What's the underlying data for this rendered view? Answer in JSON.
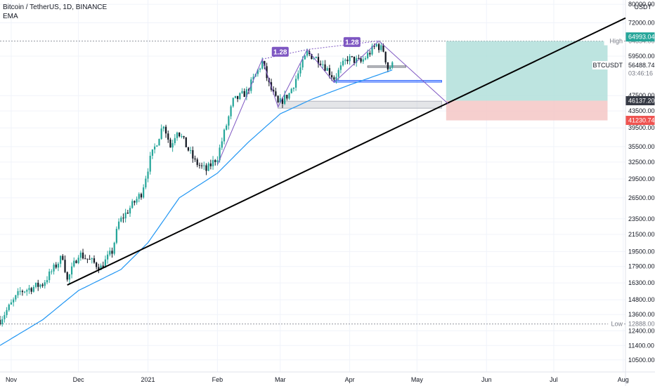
{
  "header": {
    "symbol_line": "Bitcoin / TetherUS, 1D, BINANCE",
    "indicator": "EMA"
  },
  "chart_data": {
    "type": "candlestick",
    "yscale": "log",
    "ylim": [
      9800,
      82000
    ],
    "xlim": [
      "2020-10-27",
      "2021-08-02"
    ],
    "y_ticks": [
      80000,
      72000,
      59500,
      47500,
      43500,
      39500,
      35500,
      32500,
      29500,
      26500,
      23500,
      21500,
      19500,
      17900,
      16300,
      14800,
      13600,
      12400,
      11400,
      10500
    ],
    "y_tick_labels": [
      "80000.00",
      "72000.00",
      "59500.00",
      "47500.00",
      "43500.00",
      "39500.00",
      "35500.00",
      "32500.00",
      "29500.00",
      "26500.00",
      "23500.00",
      "21500.00",
      "19500.00",
      "17900.00",
      "16300.00",
      "14800.00",
      "13600.00",
      "12400.00",
      "11400.00",
      "10500.00"
    ],
    "axis_unit": "USDT",
    "x_ticks": [
      {
        "date": "2020-11-01",
        "label": "Nov"
      },
      {
        "date": "2020-12-01",
        "label": "Dec"
      },
      {
        "date": "2021-01-01",
        "label": "2021"
      },
      {
        "date": "2021-02-01",
        "label": "Feb"
      },
      {
        "date": "2021-03-01",
        "label": "Mar"
      },
      {
        "date": "2021-04-01",
        "label": "Apr"
      },
      {
        "date": "2021-05-01",
        "label": "May"
      },
      {
        "date": "2021-06-01",
        "label": "Jun"
      },
      {
        "date": "2021-07-01",
        "label": "Jul"
      },
      {
        "date": "2021-08-01",
        "label": "Aug"
      }
    ],
    "price_anchors": [
      [
        "2020-10-27",
        13200
      ],
      [
        "2020-11-05",
        15500
      ],
      [
        "2020-11-15",
        16200
      ],
      [
        "2020-11-24",
        19000
      ],
      [
        "2020-11-26",
        16500
      ],
      [
        "2020-12-01",
        19300
      ],
      [
        "2020-12-11",
        17800
      ],
      [
        "2020-12-16",
        19500
      ],
      [
        "2020-12-19",
        23000
      ],
      [
        "2020-12-29",
        27200
      ],
      [
        "2021-01-02",
        33000
      ],
      [
        "2021-01-08",
        40500
      ],
      [
        "2021-01-11",
        35500
      ],
      [
        "2021-01-14",
        39200
      ],
      [
        "2021-01-22",
        32500
      ],
      [
        "2021-01-27",
        31000
      ],
      [
        "2021-02-01",
        33500
      ],
      [
        "2021-02-08",
        46000
      ],
      [
        "2021-02-14",
        48500
      ],
      [
        "2021-02-21",
        57500
      ],
      [
        "2021-02-24",
        50500
      ],
      [
        "2021-02-28",
        45200
      ],
      [
        "2021-03-05",
        48000
      ],
      [
        "2021-03-13",
        60500
      ],
      [
        "2021-03-19",
        58000
      ],
      [
        "2021-03-25",
        52500
      ],
      [
        "2021-03-31",
        58800
      ],
      [
        "2021-04-06",
        57500
      ],
      [
        "2021-04-13",
        63500
      ],
      [
        "2021-04-16",
        61500
      ],
      [
        "2021-04-18",
        55500
      ],
      [
        "2021-04-20",
        56488
      ]
    ],
    "ema_anchors": [
      [
        "2020-10-27",
        11400
      ],
      [
        "2020-11-15",
        13200
      ],
      [
        "2020-12-01",
        15600
      ],
      [
        "2020-12-20",
        17600
      ],
      [
        "2021-01-01",
        20500
      ],
      [
        "2021-01-15",
        26500
      ],
      [
        "2021-02-01",
        30500
      ],
      [
        "2021-02-15",
        36500
      ],
      [
        "2021-03-01",
        42800
      ],
      [
        "2021-03-15",
        46500
      ],
      [
        "2021-04-01",
        50500
      ],
      [
        "2021-04-20",
        55000
      ]
    ],
    "trendline": {
      "from": [
        "2020-11-26",
        16100
      ],
      "to": [
        "2021-08-02",
        74000
      ]
    },
    "pattern_lines": [
      [
        [
          "2021-02-01",
          32000
        ],
        [
          "2021-02-21",
          58500
        ],
        [
          "2021-02-28",
          44500
        ],
        [
          "2021-03-13",
          61800
        ],
        [
          "2021-03-25",
          51200
        ],
        [
          "2021-04-14",
          64900
        ],
        [
          "2021-05-15",
          45300
        ]
      ]
    ],
    "pattern_dotted": [
      [
        [
          "2021-02-21",
          58500
        ],
        [
          "2021-03-13",
          61800
        ],
        [
          "2021-04-14",
          64900
        ]
      ]
    ],
    "fib_labels": [
      {
        "text": "1.28",
        "date": "2021-03-01",
        "price": 61000
      },
      {
        "text": "1.28",
        "date": "2021-04-02",
        "price": 64500
      }
    ],
    "zones": [
      {
        "name": "demand-zone",
        "from": "2021-02-28",
        "to": "2021-05-12",
        "low": 44200,
        "high": 46000,
        "color": "#b2b5be"
      },
      {
        "name": "support-zone",
        "from": "2021-03-25",
        "to": "2021-05-12",
        "low": 51300,
        "high": 51800,
        "color": "#2962ff"
      },
      {
        "name": "small-zone",
        "from": "2021-04-09",
        "to": "2021-04-26",
        "low": 55800,
        "high": 56300,
        "color": "#787b86"
      }
    ],
    "position": {
      "from": "2021-05-14",
      "to": "2021-07-25",
      "entry": 46137.2,
      "target": 64854.0,
      "stop": 41230.74
    },
    "high_line": 64854.0,
    "low_line": 12888.0,
    "price_tags": [
      {
        "label": "High",
        "value": "64854.00",
        "price": 64854.0,
        "style": "plain"
      },
      {
        "label": "",
        "value": "64993.04",
        "price": 66400,
        "style": "green"
      },
      {
        "label": "BTCUSDT",
        "value": "56488.74",
        "price": 56488.74,
        "style": "current"
      },
      {
        "label": "",
        "value": "03:46:16",
        "price": 53900,
        "style": "countdown"
      },
      {
        "label": "",
        "value": "46137.20",
        "price": 46137.2,
        "style": "dark"
      },
      {
        "label": "",
        "value": "41230.74",
        "price": 41230.74,
        "style": "red"
      },
      {
        "label": "Low",
        "value": "12888.00",
        "price": 12888.0,
        "style": "plain"
      }
    ]
  },
  "colors": {
    "up": "#26a69a",
    "down": "#131722",
    "ema": "#2196f3",
    "pattern": "#7e57c2",
    "target_fill": "#b2dfdb",
    "stop_fill": "#f4c7c6",
    "grid": "#f0f3fa"
  }
}
